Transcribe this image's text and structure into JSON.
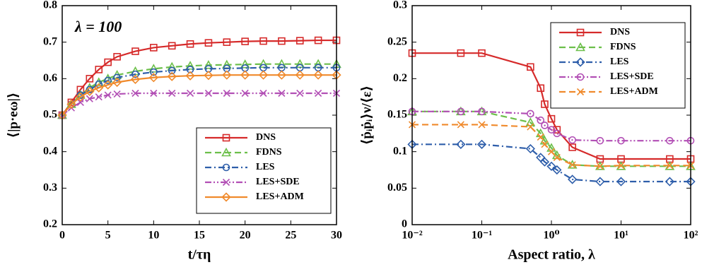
{
  "chart_data": [
    {
      "type": "line",
      "annotation": "λ = 100",
      "xlabel": "t/τη",
      "ylabel": "⟨|p·eω|⟩",
      "x": [
        0,
        1,
        2,
        3,
        4,
        5,
        6,
        8,
        10,
        12,
        14,
        16,
        18,
        20,
        22,
        24,
        26,
        28,
        30
      ],
      "xlim": [
        0,
        30
      ],
      "xticks": [
        0,
        5,
        10,
        15,
        20,
        25,
        30
      ],
      "ylim": [
        0.2,
        0.8
      ],
      "yticks": [
        0.2,
        0.3,
        0.4,
        0.5,
        0.6,
        0.7,
        0.8
      ],
      "legend": "lower right",
      "series": [
        {
          "name": "DNS",
          "color": "#d62a2a",
          "marker": "square",
          "style": "solid",
          "values": [
            0.5,
            0.535,
            0.57,
            0.6,
            0.625,
            0.645,
            0.66,
            0.675,
            0.685,
            0.69,
            0.695,
            0.698,
            0.7,
            0.702,
            0.703,
            0.703,
            0.704,
            0.705,
            0.705
          ]
        },
        {
          "name": "FDNS",
          "color": "#6cbf4a",
          "marker": "triangle",
          "style": "dashed",
          "values": [
            0.5,
            0.53,
            0.555,
            0.575,
            0.59,
            0.6,
            0.61,
            0.62,
            0.627,
            0.632,
            0.635,
            0.637,
            0.638,
            0.639,
            0.64,
            0.64,
            0.64,
            0.64,
            0.64
          ]
        },
        {
          "name": "LES",
          "color": "#2e5eaa",
          "marker": "circle",
          "style": "dashdot",
          "values": [
            0.5,
            0.53,
            0.555,
            0.57,
            0.585,
            0.595,
            0.603,
            0.612,
            0.618,
            0.622,
            0.625,
            0.627,
            0.628,
            0.629,
            0.63,
            0.63,
            0.63,
            0.63,
            0.63
          ]
        },
        {
          "name": "LES+SDE",
          "color": "#b24fb5",
          "marker": "x",
          "style": "dashdotdot",
          "values": [
            0.5,
            0.52,
            0.535,
            0.545,
            0.55,
            0.555,
            0.558,
            0.56,
            0.56,
            0.56,
            0.56,
            0.56,
            0.56,
            0.56,
            0.56,
            0.56,
            0.56,
            0.56,
            0.56
          ]
        },
        {
          "name": "LES+ADM",
          "color": "#f08a2c",
          "marker": "diamond",
          "style": "solid",
          "values": [
            0.5,
            0.53,
            0.55,
            0.565,
            0.575,
            0.583,
            0.59,
            0.598,
            0.603,
            0.606,
            0.608,
            0.609,
            0.61,
            0.61,
            0.61,
            0.61,
            0.61,
            0.61,
            0.61
          ]
        }
      ]
    },
    {
      "type": "line",
      "xlabel": "Aspect ratio, λ",
      "ylabel": "⟨ṗᵢṗᵢ⟩ν/⟨ε⟩",
      "xscale": "log",
      "x": [
        0.01,
        0.05,
        0.1,
        0.5,
        0.7,
        0.8,
        1,
        1.2,
        2,
        5,
        10,
        50,
        100
      ],
      "xlim": [
        0.01,
        100
      ],
      "xticks": [
        {
          "value": 0.01,
          "label": "10⁻²"
        },
        {
          "value": 0.1,
          "label": "10⁻¹"
        },
        {
          "value": 1,
          "label": "10⁰"
        },
        {
          "value": 10,
          "label": "10¹"
        },
        {
          "value": 100,
          "label": "10²"
        }
      ],
      "ylim": [
        0,
        0.3
      ],
      "yticks": [
        0,
        0.05,
        0.1,
        0.15,
        0.2,
        0.25,
        0.3
      ],
      "legend": "upper right",
      "series": [
        {
          "name": "DNS",
          "color": "#d62a2a",
          "marker": "square",
          "style": "solid",
          "values": [
            0.235,
            0.235,
            0.235,
            0.216,
            0.187,
            0.165,
            0.145,
            0.13,
            0.106,
            0.09,
            0.09,
            0.09,
            0.09
          ]
        },
        {
          "name": "FDNS",
          "color": "#6cbf4a",
          "marker": "triangle",
          "style": "dashed",
          "values": [
            0.155,
            0.155,
            0.155,
            0.14,
            0.125,
            0.115,
            0.105,
            0.095,
            0.082,
            0.08,
            0.08,
            0.08,
            0.08
          ]
        },
        {
          "name": "LES",
          "color": "#2e5eaa",
          "marker": "diamond",
          "style": "dashdot",
          "values": [
            0.11,
            0.11,
            0.11,
            0.104,
            0.092,
            0.086,
            0.08,
            0.075,
            0.062,
            0.059,
            0.059,
            0.059,
            0.059
          ]
        },
        {
          "name": "LES+SDE",
          "color": "#b24fb5",
          "marker": "circle",
          "style": "dashdotdot",
          "values": [
            0.155,
            0.155,
            0.155,
            0.152,
            0.143,
            0.136,
            0.13,
            0.125,
            0.116,
            0.115,
            0.115,
            0.115,
            0.115
          ]
        },
        {
          "name": "LES+ADM",
          "color": "#f08a2c",
          "marker": "x",
          "style": "dashed",
          "values": [
            0.137,
            0.137,
            0.137,
            0.134,
            0.12,
            0.11,
            0.1,
            0.092,
            0.082,
            0.08,
            0.081,
            0.081,
            0.081
          ]
        }
      ]
    }
  ]
}
